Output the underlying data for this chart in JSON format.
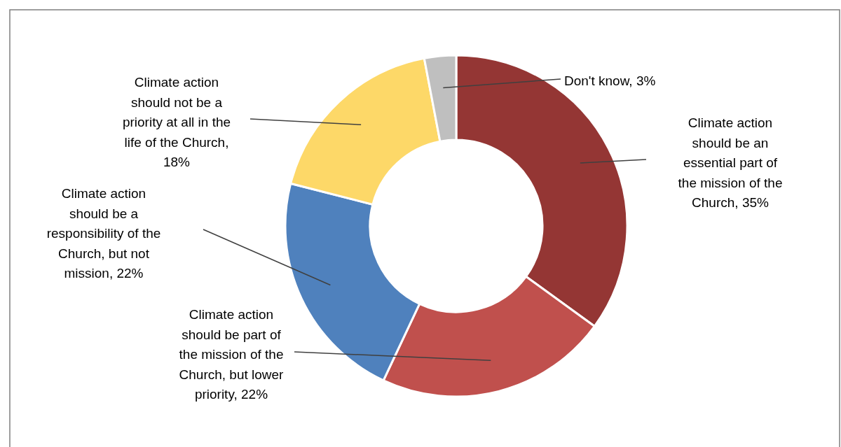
{
  "chart_data": {
    "type": "donut",
    "categories": [
      "Climate action should be an essential part of the mission of the Church",
      "Climate action should be part of the mission of the Church, but lower priority",
      "Climate action should be a responsibility of the Church, but not mission",
      "Climate action should not be a priority at all in the life of the Church",
      "Don't know"
    ],
    "values": [
      35,
      22,
      22,
      18,
      3
    ],
    "value_labels": [
      ", 35%",
      ", 22%",
      ", 22%",
      ", 18%",
      ", 3%"
    ],
    "colors": [
      "#943634",
      "#c0504d",
      "#4f81bd",
      "#fdd868",
      "#bfbfbf"
    ]
  }
}
